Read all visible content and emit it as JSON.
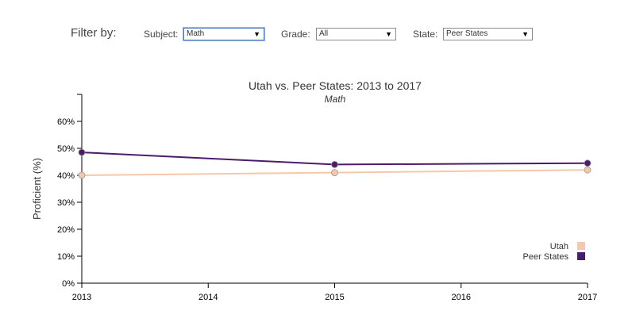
{
  "filters": {
    "title": "Filter by:",
    "subject": {
      "label": "Subject:",
      "selected": "Math"
    },
    "grade": {
      "label": "Grade:",
      "selected": "All"
    },
    "state": {
      "label": "State:",
      "selected": "Peer States"
    }
  },
  "icons": {
    "dropdown_arrow": "▼"
  },
  "chart_data": {
    "type": "line",
    "title": "Utah vs. Peer States: 2013 to 2017",
    "subtitle": "Math",
    "xlabel": "",
    "ylabel": "Proficient (%)",
    "x": [
      2013,
      2015,
      2017
    ],
    "x_ticks": [
      2013,
      2014,
      2015,
      2016,
      2017
    ],
    "xlim": [
      2013,
      2017
    ],
    "ylim": [
      0,
      70
    ],
    "y_ticks": [
      0,
      10,
      20,
      30,
      40,
      50,
      60
    ],
    "y_tick_suffix": "%",
    "grid": false,
    "legend_position": "bottom-right",
    "series": [
      {
        "name": "Utah",
        "color": "#f6c8aa",
        "values": [
          40,
          41,
          42
        ]
      },
      {
        "name": "Peer States",
        "color": "#4b1c6e",
        "values": [
          48.5,
          44,
          44.5
        ]
      }
    ]
  }
}
